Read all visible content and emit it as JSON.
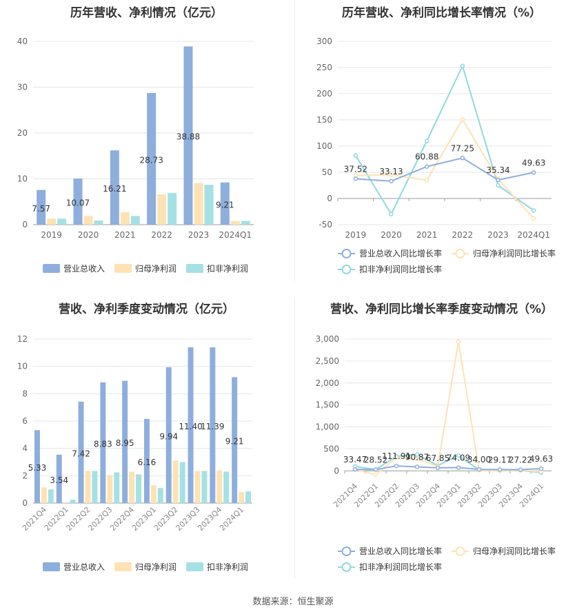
{
  "source": "数据来源：恒生聚源",
  "colors": {
    "revenue": "#8eaedc",
    "parent_net": "#fde2b4",
    "deducted_net": "#a5e0e4",
    "revenue_line": "#8eaedc",
    "parent_line": "#fde2b4",
    "deducted_line": "#8fd8df"
  },
  "chart_data": [
    {
      "id": "annual_value",
      "type": "bar",
      "title": "历年营收、净利情况（亿元）",
      "categories": [
        "2019",
        "2020",
        "2021",
        "2022",
        "2023",
        "2024Q1"
      ],
      "series": [
        {
          "name": "营业总收入",
          "values": [
            7.57,
            10.07,
            16.21,
            28.73,
            38.88,
            9.21
          ],
          "labels": [
            "7.57",
            "10.07",
            "16.21",
            "28.73",
            "38.88",
            "9.21"
          ]
        },
        {
          "name": "归母净利润",
          "values": [
            1.3,
            1.9,
            2.7,
            6.6,
            9.1,
            0.8
          ]
        },
        {
          "name": "扣非净利润",
          "values": [
            1.3,
            0.9,
            1.9,
            6.9,
            8.7,
            0.8
          ]
        }
      ],
      "ylim": [
        0,
        40
      ],
      "yticks": [
        "0",
        "10",
        "20",
        "30",
        "40"
      ],
      "grid": true,
      "legend": "bottom"
    },
    {
      "id": "annual_growth",
      "type": "line",
      "title": "历年营收、净利同比增长率情况（%）",
      "categories": [
        "2019",
        "2020",
        "2021",
        "2022",
        "2023",
        "2024Q1"
      ],
      "series": [
        {
          "name": "营业总收入同比增长率",
          "values": [
            37.52,
            33.13,
            60.88,
            77.25,
            35.34,
            49.63
          ],
          "labels": [
            "37.52",
            "33.13",
            "60.88",
            "77.25",
            "35.34",
            "49.63"
          ]
        },
        {
          "name": "归母净利润同比增长率",
          "values": [
            44,
            45,
            35,
            151,
            37,
            -38
          ]
        },
        {
          "name": "扣非净利润同比增长率",
          "values": [
            82,
            -30,
            110,
            253,
            25,
            -23
          ]
        }
      ],
      "ylim": [
        -50,
        300
      ],
      "yticks": [
        "-50",
        "0",
        "50",
        "100",
        "150",
        "200",
        "250",
        "300"
      ],
      "grid": true,
      "legend": "bottom"
    },
    {
      "id": "quarterly_value",
      "type": "bar",
      "title": "营收、净利季度变动情况（亿元）",
      "categories": [
        "2021Q4",
        "2022Q1",
        "2022Q2",
        "2022Q3",
        "2022Q4",
        "2023Q1",
        "2023Q2",
        "2023Q3",
        "2023Q4",
        "2024Q1"
      ],
      "series": [
        {
          "name": "营业总收入",
          "values": [
            5.33,
            3.54,
            7.42,
            8.83,
            8.95,
            6.16,
            9.94,
            11.4,
            11.39,
            9.21
          ],
          "labels": [
            "5.33",
            "3.54",
            "7.42",
            "8.83",
            "8.95",
            "6.16",
            "9.94",
            "11.40",
            "11.39",
            "9.21"
          ]
        },
        {
          "name": "归母净利润",
          "values": [
            1.15,
            0.05,
            2.35,
            2.05,
            2.3,
            1.3,
            3.1,
            2.35,
            2.4,
            0.8
          ]
        },
        {
          "name": "扣非净利润",
          "values": [
            1.0,
            0.25,
            2.35,
            2.25,
            2.1,
            1.1,
            3.0,
            2.35,
            2.3,
            0.85
          ]
        }
      ],
      "ylim": [
        0,
        12
      ],
      "yticks": [
        "0",
        "2",
        "4",
        "6",
        "8",
        "10",
        "12"
      ],
      "grid": true,
      "legend": "bottom"
    },
    {
      "id": "quarterly_growth",
      "type": "line",
      "title": "营收、净利同比增长率季度变动情况（%）",
      "categories": [
        "2021Q4",
        "2022Q1",
        "2022Q2",
        "2022Q3",
        "2022Q4",
        "2023Q1",
        "2023Q2",
        "2023Q3",
        "2023Q4",
        "2024Q1"
      ],
      "series": [
        {
          "name": "营业总收入同比增长率",
          "values": [
            33.47,
            28.52,
            111.91,
            90.87,
            67.85,
            74.09,
            34.0,
            29.17,
            27.22,
            49.63
          ],
          "labels": [
            "33.47",
            "28.52",
            "111.91",
            "90.87",
            "67.85",
            "74.09",
            "34.00",
            "29.17",
            "27.22",
            "49.63"
          ]
        },
        {
          "name": "归母净利润同比增长率",
          "values": [
            40,
            -90,
            300,
            270,
            100,
            2940,
            10,
            5,
            15,
            -20
          ]
        },
        {
          "name": "扣非净利润同比增长率",
          "values": [
            100,
            30,
            330,
            370,
            120,
            350,
            20,
            0,
            10,
            -40
          ]
        }
      ],
      "ylim": [
        -200,
        3000
      ],
      "yticks": [
        "0",
        "500",
        "1,000",
        "1,500",
        "2,000",
        "2,500",
        "3,000"
      ],
      "ytick_values": [
        0,
        500,
        1000,
        1500,
        2000,
        2500,
        3000
      ],
      "grid": true,
      "legend": "bottom"
    }
  ]
}
